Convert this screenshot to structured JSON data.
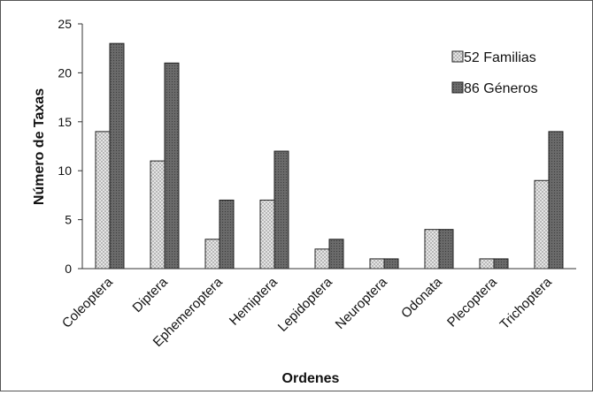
{
  "chart_data": {
    "type": "bar",
    "title": "",
    "xlabel": "Ordenes",
    "ylabel": "Número de Taxas",
    "ylim": [
      0,
      25
    ],
    "yticks": [
      0,
      5,
      10,
      15,
      20,
      25
    ],
    "grid": false,
    "legend_position": "top-right",
    "categories": [
      "Coleoptera",
      "Diptera",
      "Ephemeroptera",
      "Hemiptera",
      "Lepidoptera",
      "Neuroptera",
      "Odonata",
      "Plecoptera",
      "Trichoptera"
    ],
    "series": [
      {
        "name": "52 Familias",
        "values": [
          14,
          11,
          3,
          7,
          2,
          1,
          4,
          1,
          9
        ],
        "color": "#e6e6e6",
        "pattern": "crosshatch"
      },
      {
        "name": "86 Géneros",
        "values": [
          23,
          21,
          7,
          12,
          3,
          1,
          4,
          1,
          14
        ],
        "color": "#6b6b6b",
        "pattern": "dots"
      }
    ]
  }
}
